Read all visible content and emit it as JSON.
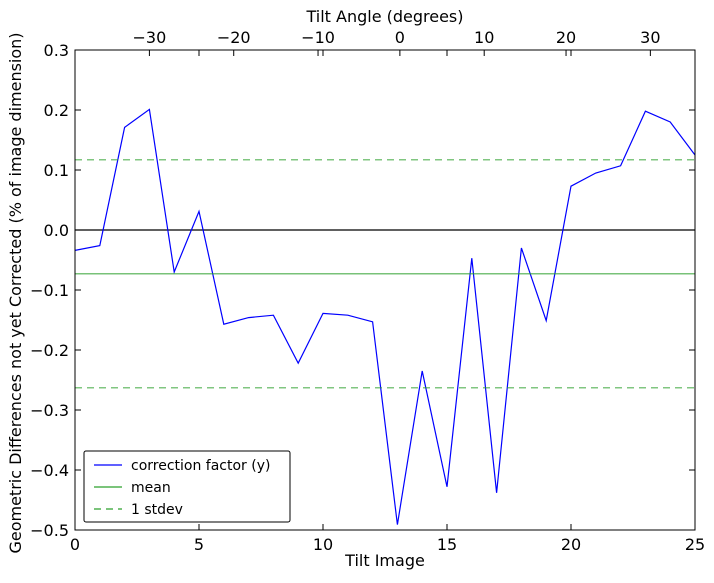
{
  "chart_data": {
    "type": "line",
    "title": "",
    "xlabel": "Tilt Image",
    "ylabel": "Geometric Differences not yet Corrected (% of image dimension)",
    "top_xlabel": "Tilt Angle (degrees)",
    "xlim": [
      0,
      25
    ],
    "ylim": [
      -0.5,
      0.3
    ],
    "xticks": [
      0,
      5,
      10,
      15,
      20,
      25
    ],
    "yticks": [
      -0.5,
      -0.4,
      -0.3,
      -0.2,
      -0.1,
      0.0,
      0.1,
      0.2,
      0.3
    ],
    "top_xticks": [
      {
        "label": "−30",
        "x": 3
      },
      {
        "label": "−20",
        "x": 6.4
      },
      {
        "label": "−10",
        "x": 9.8
      },
      {
        "label": "0",
        "x": 13.1
      },
      {
        "label": "10",
        "x": 16.5
      },
      {
        "label": "20",
        "x": 19.8
      },
      {
        "label": "30",
        "x": 23.2
      }
    ],
    "series": [
      {
        "name": "correction factor (y)",
        "color": "#0000ff",
        "style": "solid",
        "x": [
          0,
          1,
          2,
          3,
          4,
          5,
          6,
          7,
          8,
          9,
          10,
          11,
          12,
          13,
          14,
          15,
          16,
          17,
          18,
          19,
          20,
          21,
          22,
          23,
          24,
          25
        ],
        "y": [
          -0.034,
          -0.026,
          0.171,
          0.201,
          -0.07,
          0.031,
          -0.157,
          -0.146,
          -0.142,
          -0.222,
          -0.139,
          -0.142,
          -0.153,
          -0.491,
          -0.235,
          -0.428,
          -0.047,
          -0.438,
          -0.03,
          -0.151,
          0.073,
          0.095,
          0.107,
          0.198,
          0.18,
          0.125
        ]
      },
      {
        "name": "mean",
        "color": "#2ca02c",
        "style": "solid",
        "x": [
          0,
          25
        ],
        "y": [
          -0.073,
          -0.073
        ]
      },
      {
        "name": "1 stdev",
        "color": "#2ca02c",
        "style": "dashed",
        "x": [
          0,
          25,
          0,
          25
        ],
        "y": [
          0.117,
          0.117,
          -0.263,
          -0.263
        ]
      }
    ],
    "reference_line": {
      "y": 0.0,
      "color": "#000000"
    },
    "legend_placement": "lower-left",
    "grid": false
  }
}
